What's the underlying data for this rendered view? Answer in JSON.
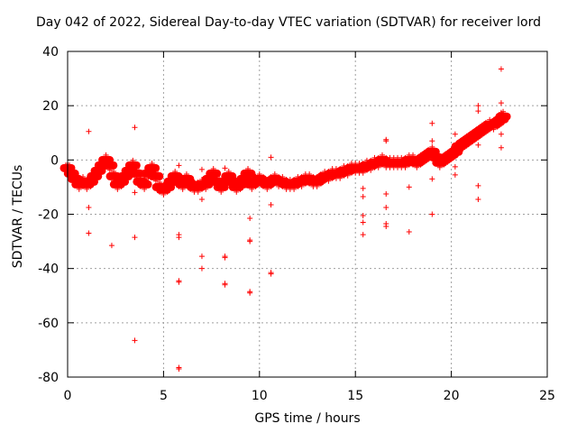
{
  "chart_data": {
    "type": "scatter",
    "title": "Day 042 of 2022, Sidereal Day-to-day VTEC variation (SDTVAR) for receiver lord",
    "xlabel": "GPS time / hours",
    "ylabel": "SDTVAR / TECUs",
    "xlim": [
      0,
      25
    ],
    "ylim": [
      -80,
      40
    ],
    "xticks": [
      0,
      5,
      10,
      15,
      20,
      25
    ],
    "yticks": [
      -80,
      -60,
      -40,
      -20,
      0,
      20,
      40
    ],
    "grid": true,
    "marker": "+",
    "color": "#ff0000",
    "bands": [
      [
        0.0,
        -3
      ],
      [
        0.2,
        -5
      ],
      [
        0.4,
        -7
      ],
      [
        0.6,
        -9
      ],
      [
        0.8,
        -8
      ],
      [
        1.0,
        -9
      ],
      [
        1.2,
        -8
      ],
      [
        1.4,
        -6
      ],
      [
        1.6,
        -4
      ],
      [
        1.8,
        -2
      ],
      [
        2.0,
        0
      ],
      [
        2.2,
        -2
      ],
      [
        2.4,
        -6
      ],
      [
        2.6,
        -9
      ],
      [
        2.8,
        -8
      ],
      [
        3.0,
        -6
      ],
      [
        3.2,
        -4
      ],
      [
        3.4,
        -2
      ],
      [
        3.6,
        -5
      ],
      [
        3.8,
        -8
      ],
      [
        4.0,
        -9
      ],
      [
        4.2,
        -5
      ],
      [
        4.4,
        -3
      ],
      [
        4.6,
        -6
      ],
      [
        4.8,
        -10
      ],
      [
        5.0,
        -11
      ],
      [
        5.2,
        -10
      ],
      [
        5.4,
        -8
      ],
      [
        5.6,
        -6
      ],
      [
        5.8,
        -8
      ],
      [
        6.0,
        -9
      ],
      [
        6.2,
        -7
      ],
      [
        6.4,
        -9
      ],
      [
        6.6,
        -10
      ],
      [
        6.8,
        -10
      ],
      [
        7.0,
        -9
      ],
      [
        7.2,
        -9
      ],
      [
        7.4,
        -7
      ],
      [
        7.6,
        -5
      ],
      [
        7.8,
        -8
      ],
      [
        8.0,
        -10
      ],
      [
        8.2,
        -8
      ],
      [
        8.4,
        -6
      ],
      [
        8.6,
        -8
      ],
      [
        8.8,
        -10
      ],
      [
        9.0,
        -9
      ],
      [
        9.2,
        -7
      ],
      [
        9.4,
        -5
      ],
      [
        9.6,
        -9
      ],
      [
        9.8,
        -8
      ],
      [
        10.0,
        -7
      ],
      [
        10.2,
        -8
      ],
      [
        10.4,
        -9
      ],
      [
        10.6,
        -8
      ],
      [
        10.8,
        -7
      ],
      [
        11.0,
        -8
      ],
      [
        11.2,
        -8
      ],
      [
        11.4,
        -9
      ],
      [
        11.6,
        -9
      ],
      [
        11.8,
        -9
      ],
      [
        12.0,
        -8
      ],
      [
        12.2,
        -8
      ],
      [
        12.4,
        -7
      ],
      [
        12.6,
        -7
      ],
      [
        12.8,
        -8
      ],
      [
        13.0,
        -8
      ],
      [
        13.2,
        -7
      ],
      [
        13.4,
        -6
      ],
      [
        13.6,
        -6
      ],
      [
        13.8,
        -5
      ],
      [
        14.0,
        -5
      ],
      [
        14.2,
        -5
      ],
      [
        14.4,
        -4
      ],
      [
        14.6,
        -4
      ],
      [
        14.8,
        -3
      ],
      [
        15.0,
        -3
      ],
      [
        15.2,
        -3
      ],
      [
        15.4,
        -3
      ],
      [
        15.6,
        -2
      ],
      [
        15.8,
        -2
      ],
      [
        16.0,
        -1
      ],
      [
        16.2,
        -1
      ],
      [
        16.4,
        0
      ],
      [
        16.6,
        -1
      ],
      [
        16.8,
        -1
      ],
      [
        17.0,
        -1
      ],
      [
        17.2,
        -1
      ],
      [
        17.4,
        -1
      ],
      [
        17.6,
        -1
      ],
      [
        17.8,
        0
      ],
      [
        18.0,
        0
      ],
      [
        18.2,
        -1
      ],
      [
        18.4,
        0
      ],
      [
        18.6,
        1
      ],
      [
        18.8,
        2
      ],
      [
        19.0,
        3
      ],
      [
        19.2,
        1
      ],
      [
        19.4,
        -1
      ],
      [
        19.6,
        0
      ],
      [
        19.8,
        1
      ],
      [
        20.0,
        2
      ],
      [
        20.2,
        3
      ],
      [
        20.4,
        5
      ],
      [
        20.6,
        6
      ],
      [
        20.8,
        7
      ],
      [
        21.0,
        8
      ],
      [
        21.2,
        9
      ],
      [
        21.4,
        10
      ],
      [
        21.6,
        11
      ],
      [
        21.8,
        12
      ],
      [
        22.0,
        13
      ],
      [
        22.2,
        13
      ],
      [
        22.4,
        14
      ],
      [
        22.6,
        15
      ],
      [
        22.7,
        16
      ]
    ],
    "points": [
      [
        1.1,
        10.5
      ],
      [
        1.1,
        -17.5
      ],
      [
        1.1,
        -27
      ],
      [
        2.3,
        -31.5
      ],
      [
        3.5,
        12
      ],
      [
        3.5,
        -28.5
      ],
      [
        3.5,
        -66.5
      ],
      [
        3.5,
        -12
      ],
      [
        5.8,
        -2
      ],
      [
        5.8,
        -27.5
      ],
      [
        5.8,
        -28.5
      ],
      [
        5.8,
        -44.5
      ],
      [
        5.8,
        -45
      ],
      [
        5.8,
        -76.5
      ],
      [
        5.8,
        -77
      ],
      [
        7.0,
        -3.5
      ],
      [
        7.0,
        -14.5
      ],
      [
        7.0,
        -35.5
      ],
      [
        7.0,
        -40
      ],
      [
        8.2,
        -3
      ],
      [
        8.2,
        -35.5
      ],
      [
        8.2,
        -36
      ],
      [
        8.2,
        -45.5
      ],
      [
        8.2,
        -46
      ],
      [
        9.5,
        -21.5
      ],
      [
        9.5,
        -29.5
      ],
      [
        9.5,
        -30
      ],
      [
        9.5,
        -48.5
      ],
      [
        9.5,
        -49
      ],
      [
        10.6,
        1
      ],
      [
        10.6,
        -16.5
      ],
      [
        10.6,
        -41.5
      ],
      [
        10.6,
        -42
      ],
      [
        15.4,
        -10.5
      ],
      [
        15.4,
        -13.5
      ],
      [
        15.4,
        -20.5
      ],
      [
        15.4,
        -23
      ],
      [
        15.4,
        -27.5
      ],
      [
        16.6,
        7.5
      ],
      [
        16.6,
        7
      ],
      [
        16.6,
        -12.5
      ],
      [
        16.6,
        -17.5
      ],
      [
        16.6,
        -23.5
      ],
      [
        16.6,
        -24.5
      ],
      [
        17.8,
        -10
      ],
      [
        17.8,
        -26.5
      ],
      [
        19.0,
        13.5
      ],
      [
        19.0,
        7
      ],
      [
        19.0,
        -7
      ],
      [
        19.0,
        -20
      ],
      [
        20.2,
        9.5
      ],
      [
        20.2,
        -2.5
      ],
      [
        20.2,
        -5.5
      ],
      [
        21.4,
        20
      ],
      [
        21.4,
        18
      ],
      [
        21.4,
        5.5
      ],
      [
        21.4,
        -9.5
      ],
      [
        21.4,
        -14.5
      ],
      [
        22.6,
        33.5
      ],
      [
        22.6,
        21
      ],
      [
        22.6,
        17.5
      ],
      [
        22.6,
        9.5
      ],
      [
        22.6,
        4.5
      ]
    ]
  }
}
